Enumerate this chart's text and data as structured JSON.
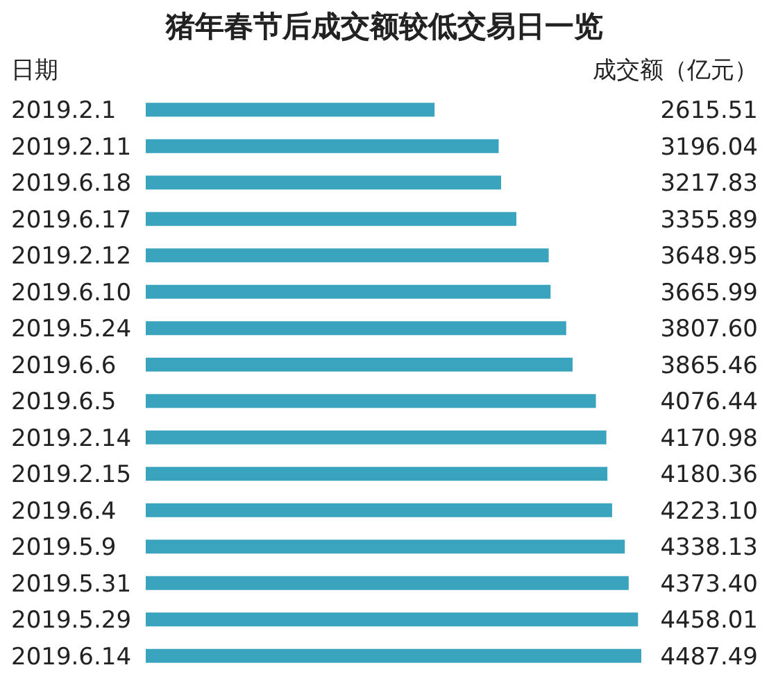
{
  "chart_data": {
    "type": "bar",
    "orientation": "horizontal",
    "title": "猪年春节后成交额较低交易日一览",
    "ylabel": "日期",
    "xlabel": "成交额（亿元）",
    "categories": [
      "2019.2.1",
      "2019.2.11",
      "2019.6.18",
      "2019.6.17",
      "2019.2.12",
      "2019.6.10",
      "2019.5.24",
      "2019.6.6",
      "2019.6.5",
      "2019.2.14",
      "2019.2.15",
      "2019.6.4",
      "2019.5.9",
      "2019.5.31",
      "2019.5.29",
      "2019.6.14"
    ],
    "values": [
      2615.51,
      3196.04,
      3217.83,
      3355.89,
      3648.95,
      3665.99,
      3807.6,
      3865.46,
      4076.44,
      4170.98,
      4180.36,
      4223.1,
      4338.13,
      4373.4,
      4458.01,
      4487.49
    ],
    "value_labels": [
      "2615.51",
      "3196.04",
      "3217.83",
      "3355.89",
      "3648.95",
      "3665.99",
      "3807.60",
      "3865.46",
      "4076.44",
      "4170.98",
      "4180.36",
      "4223.10",
      "4338.13",
      "4373.40",
      "4458.01",
      "4487.49"
    ],
    "color": "#3aa3bd"
  }
}
